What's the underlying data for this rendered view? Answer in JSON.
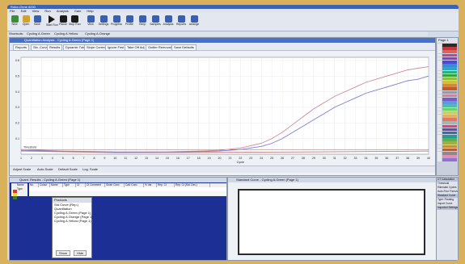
{
  "window": {
    "title": "Rotor-Gene 6000",
    "menu": [
      "File",
      "Edit",
      "View",
      "Run",
      "Analysis",
      "Gain",
      "Help"
    ]
  },
  "toolbar": {
    "buttons": [
      {
        "label": "New",
        "icon": "new-file-icon",
        "color": "#3c8d3c"
      },
      {
        "label": "Open",
        "icon": "open-folder-icon",
        "color": "#d6a12a"
      },
      {
        "label": "Save",
        "icon": "save-disk-icon",
        "color": "#3a5fb0"
      },
      {
        "label": "Start Run",
        "icon": "play-icon",
        "color": "#1a1a1a"
      },
      {
        "label": "Pause",
        "icon": "pause-icon",
        "color": "#1a1a1a"
      },
      {
        "label": "Stop Run",
        "icon": "stop-icon",
        "color": "#1a1a1a"
      },
      {
        "label": "View",
        "icon": "view-icon",
        "color": "#3a5fb0"
      },
      {
        "label": "Settings",
        "icon": "wrench-icon",
        "color": "#3a5fb0"
      },
      {
        "label": "Progress",
        "icon": "progress-icon",
        "color": "#3a5fb0"
      },
      {
        "label": "Profile",
        "icon": "profile-icon",
        "color": "#3a5fb0"
      },
      {
        "label": "Temp",
        "icon": "thermometer-icon",
        "color": "#3a5fb0"
      },
      {
        "label": "Samples",
        "icon": "samples-icon",
        "color": "#3a5fb0"
      },
      {
        "label": "Analysis",
        "icon": "analysis-icon",
        "color": "#3a5fb0"
      },
      {
        "label": "Reports",
        "icon": "reports-icon",
        "color": "#3a5fb0"
      },
      {
        "label": "Arrange",
        "icon": "arrange-icon",
        "color": "#3a5fb0"
      }
    ]
  },
  "shortcuts": [
    "Shortcuts:",
    "Cycling A.Green",
    "Cycling A.Yellow",
    "Cycling A.Orange"
  ],
  "analysis": {
    "title": "Quantitation Analysis - Cycling A.Green (Page 1)",
    "tools": [
      "Reports",
      "Slo. Curve",
      "Results",
      "Dynamic Tube",
      "Slope Correct",
      "Ignore First",
      "Take Off Adj",
      "Outlier Removal",
      "Save Defaults"
    ]
  },
  "chart_foot": [
    "Adjust Scale",
    "Auto-Scale",
    "Default Scale",
    "Log. Scale"
  ],
  "chart_data": {
    "type": "line",
    "xlabel": "Cycle",
    "ylabel": "",
    "xlim": [
      1,
      40
    ],
    "ylim": [
      0,
      0.62
    ],
    "xticks": [
      1,
      2,
      3,
      4,
      5,
      6,
      7,
      8,
      9,
      10,
      11,
      12,
      13,
      14,
      15,
      16,
      17,
      18,
      19,
      20,
      21,
      22,
      23,
      24,
      25,
      26,
      27,
      28,
      29,
      30,
      31,
      32,
      33,
      34,
      35,
      36,
      37,
      38,
      39,
      40
    ],
    "yticks": [
      0.1,
      0.2,
      0.3,
      0.4,
      0.5,
      0.6
    ],
    "threshold_label": "Threshold",
    "threshold": 0.03,
    "series": [
      {
        "color": "#d08a96",
        "x": [
          1,
          5,
          10,
          15,
          18,
          20,
          22,
          24,
          25,
          26,
          27,
          28,
          29,
          30,
          31,
          32,
          33,
          34,
          35,
          36,
          37,
          38,
          39,
          40
        ],
        "y": [
          0.03,
          0.02,
          0.015,
          0.015,
          0.02,
          0.025,
          0.04,
          0.07,
          0.1,
          0.14,
          0.19,
          0.24,
          0.29,
          0.33,
          0.37,
          0.4,
          0.43,
          0.46,
          0.48,
          0.5,
          0.52,
          0.54,
          0.55,
          0.56
        ]
      },
      {
        "color": "#7f7cd2",
        "x": [
          1,
          5,
          10,
          15,
          18,
          20,
          22,
          24,
          25,
          26,
          27,
          28,
          29,
          30,
          31,
          32,
          33,
          34,
          35,
          36,
          37,
          38,
          39,
          40
        ],
        "y": [
          0.025,
          0.018,
          0.013,
          0.013,
          0.017,
          0.02,
          0.03,
          0.05,
          0.07,
          0.1,
          0.14,
          0.18,
          0.22,
          0.26,
          0.3,
          0.33,
          0.36,
          0.39,
          0.41,
          0.43,
          0.45,
          0.47,
          0.48,
          0.5
        ]
      },
      {
        "color": "#c07878",
        "x": [
          1,
          10,
          20,
          30,
          40
        ],
        "y": [
          0.02,
          0.01,
          0.012,
          0.015,
          0.02
        ]
      }
    ]
  },
  "quant": {
    "title": "Quant. Results - Cycling A.Green (Page 1)",
    "headers": [
      "No.",
      "Colour",
      "Name",
      "Type",
      "Ct",
      "Ct Comment",
      "Given Conc",
      "Calc Conc",
      "% Var",
      "Rep. Ct",
      "Rep. Ct (Std. Dev.)"
    ],
    "side": [
      "Name",
      "Type"
    ],
    "swatches": [
      "#d33a2c",
      "#e8d84a",
      "#3a7a3a"
    ],
    "products": {
      "header": "Products",
      "rows": [
        "Std Curve (Rep.)",
        "Quantitation",
        "Cycling A.Green (Page 1)",
        "Cycling A.Orange (Page 1)",
        "Cycling A.Yellow (Page 1)"
      ],
      "buttons": [
        "Show",
        "Hide"
      ]
    }
  },
  "stdcurve": {
    "title": "Standard Curve - Cycling A.Green (Page 1)"
  },
  "colorpanel": {
    "title": "Page 1",
    "colors": [
      "#2a2a2a",
      "#c23a3a",
      "#e06060",
      "#b84a8a",
      "#8c3ad0",
      "#4a4ad6",
      "#3a8ad6",
      "#2aa8c0",
      "#2ab080",
      "#3aa03a",
      "#8ac03a",
      "#d0c03a",
      "#d08a3a",
      "#c05a2a",
      "#9a9a9a",
      "#e07aa0",
      "#7a5ac0",
      "#5a9ae0",
      "#4ac0a0",
      "#6ad06a",
      "#c0d06a",
      "#e0b06a",
      "#e07a5a",
      "#b0b0b0",
      "#d04a7a",
      "#6a4aa0",
      "#3a6ab0",
      "#2a9a8a",
      "#5ab04a",
      "#a0b03a",
      "#c0903a",
      "#b06040",
      "#8a8a8a",
      "#e090b0",
      "#9070d0"
    ]
  },
  "calc": {
    "rows": [
      "CT Calculation",
      "Threshold",
      "Eliminate Cycles",
      "Auto-Find Threshold",
      "Standard Curve",
      "Type: Floating",
      "Import Curve",
      "Imported Settings"
    ]
  }
}
